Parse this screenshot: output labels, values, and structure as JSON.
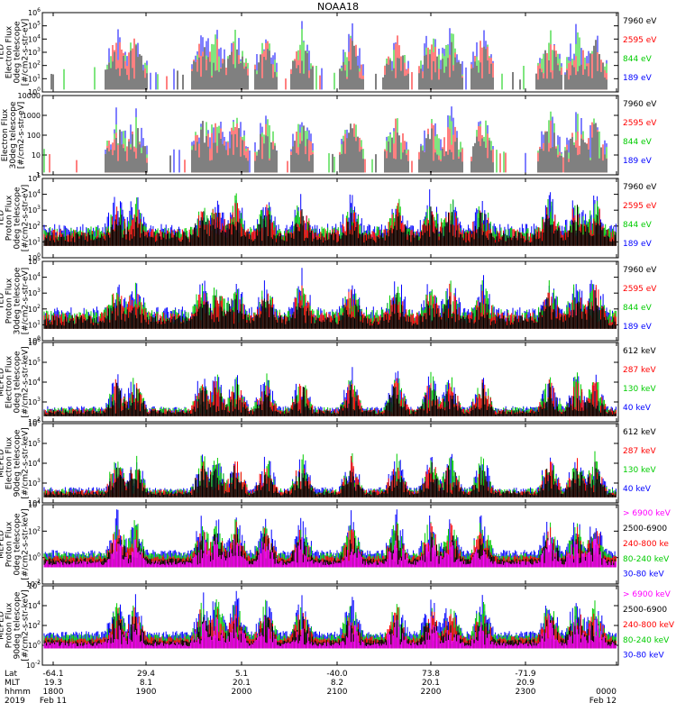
{
  "title": "NOAA18",
  "chart_data": {
    "type": "line",
    "title": "NOAA18",
    "x_axis": {
      "rows": [
        {
          "label": "Lat",
          "values": [
            "-64.1",
            "29.4",
            "5.1",
            "-40.0",
            "73.8",
            "-71.9",
            ""
          ]
        },
        {
          "label": "MLT",
          "values": [
            "19.3",
            "8.1",
            "20.1",
            "8.2",
            "20.1",
            "20.9",
            ""
          ]
        },
        {
          "label": "hhmm",
          "values": [
            "1800",
            "1900",
            "2000",
            "2100",
            "2200",
            "2300",
            "0000"
          ]
        },
        {
          "label": "2019",
          "values": [
            "Feb 11",
            "",
            "",
            "",
            "",
            "",
            "Feb 12"
          ]
        }
      ],
      "ticks": [
        "1800",
        "1900",
        "2000",
        "2100",
        "2200",
        "2300",
        "0000"
      ]
    },
    "panels": [
      {
        "ylabel": [
          "TED",
          "Electron Flux",
          "0deg telescope",
          "[#/cm2-s-str-eV]"
        ],
        "ylim_exp": [
          0,
          6
        ],
        "yticks": [
          "10^0",
          "10^1",
          "10^2",
          "10^3",
          "10^4",
          "10^5",
          "10^6"
        ],
        "legend": [
          {
            "name": "7960 eV",
            "color": "#000000"
          },
          {
            "name": "2595 eV",
            "color": "#ff0000"
          },
          {
            "name": "844 eV",
            "color": "#00cc00"
          },
          {
            "name": "189 eV",
            "color": "#0000ff"
          }
        ]
      },
      {
        "ylabel": [
          "Electron Flux",
          "30deg telescope",
          "[#/cm2-s-str-eV]"
        ],
        "ylim_exp": [
          0,
          4
        ],
        "yticks": [
          "1",
          "10",
          "100",
          "1000",
          "10000"
        ],
        "legend": [
          {
            "name": "7960 eV",
            "color": "#000000"
          },
          {
            "name": "2595 eV",
            "color": "#ff0000"
          },
          {
            "name": "844 eV",
            "color": "#00cc00"
          },
          {
            "name": "189 eV",
            "color": "#0000ff"
          }
        ]
      },
      {
        "ylabel": [
          "TED",
          "Proton Flux",
          "0deg telescope",
          "[#/cm2-s-str-eV]"
        ],
        "ylim_exp": [
          0,
          5
        ],
        "yticks": [
          "10^0",
          "10^1",
          "10^2",
          "10^3",
          "10^4",
          "10^5"
        ],
        "legend": [
          {
            "name": "7960 eV",
            "color": "#000000"
          },
          {
            "name": "2595 eV",
            "color": "#ff0000"
          },
          {
            "name": "844 eV",
            "color": "#00cc00"
          },
          {
            "name": "189 eV",
            "color": "#0000ff"
          }
        ]
      },
      {
        "ylabel": [
          "TED",
          "Proton Flux",
          "30deg telescope",
          "[#/cm2-s-str-eV]"
        ],
        "ylim_exp": [
          0,
          5
        ],
        "yticks": [
          "10^0",
          "10^1",
          "10^2",
          "10^3",
          "10^4",
          "10^5"
        ],
        "legend": [
          {
            "name": "7960 eV",
            "color": "#000000"
          },
          {
            "name": "2595 eV",
            "color": "#ff0000"
          },
          {
            "name": "844 eV",
            "color": "#00cc00"
          },
          {
            "name": "189 eV",
            "color": "#0000ff"
          }
        ]
      },
      {
        "ylabel": [
          "MEPED",
          "Electron Flux",
          "0deg telescope",
          "[#/cm2-s-str-keV]"
        ],
        "ylim_exp": [
          2,
          6
        ],
        "yticks": [
          "10^2",
          "10^3",
          "10^4",
          "10^5",
          "10^6"
        ],
        "legend": [
          {
            "name": "612 keV",
            "color": "#000000"
          },
          {
            "name": "287 keV",
            "color": "#ff0000"
          },
          {
            "name": "130 keV",
            "color": "#00cc00"
          },
          {
            "name": "40 keV",
            "color": "#0000ff"
          }
        ]
      },
      {
        "ylabel": [
          "MEPED",
          "Electron Flux",
          "90deg telescope",
          "[#/cm2-s-str-keV]"
        ],
        "ylim_exp": [
          2,
          6
        ],
        "yticks": [
          "10^2",
          "10^3",
          "10^4",
          "10^5",
          "10^6"
        ],
        "legend": [
          {
            "name": "612 keV",
            "color": "#000000"
          },
          {
            "name": "287 keV",
            "color": "#ff0000"
          },
          {
            "name": "130 keV",
            "color": "#00cc00"
          },
          {
            "name": "40 keV",
            "color": "#0000ff"
          }
        ]
      },
      {
        "ylabel": [
          "MEPED",
          "Proton Flux",
          "0deg telescope",
          "[#/cm2-s-str-keV]"
        ],
        "ylim_exp": [
          -2,
          5
        ],
        "yticks": [
          "10^-2",
          "10^0",
          "10^2",
          "10^4"
        ],
        "legend": [
          {
            "name": "> 6900 keV",
            "color": "#ff00ff"
          },
          {
            "name": "2500-6900",
            "color": "#000000"
          },
          {
            "name": "240-800 ke",
            "color": "#ff0000"
          },
          {
            "name": "80-240 keV",
            "color": "#00cc00"
          },
          {
            "name": "30-80 keV",
            "color": "#0000ff"
          }
        ]
      },
      {
        "ylabel": [
          "MEPED",
          "Proton Flux",
          "90deg telescope",
          "[#/cm2-s-str-keV]"
        ],
        "ylim_exp": [
          -2,
          6
        ],
        "yticks": [
          "10^-2",
          "10^0",
          "10^2",
          "10^4",
          "10^6"
        ],
        "legend": [
          {
            "name": "> 6900 keV",
            "color": "#ff00ff"
          },
          {
            "name": "2500-6900",
            "color": "#000000"
          },
          {
            "name": "240-800 keV",
            "color": "#ff0000"
          },
          {
            "name": "80-240 keV",
            "color": "#00cc00"
          },
          {
            "name": "30-80 keV",
            "color": "#0000ff"
          }
        ]
      }
    ]
  }
}
